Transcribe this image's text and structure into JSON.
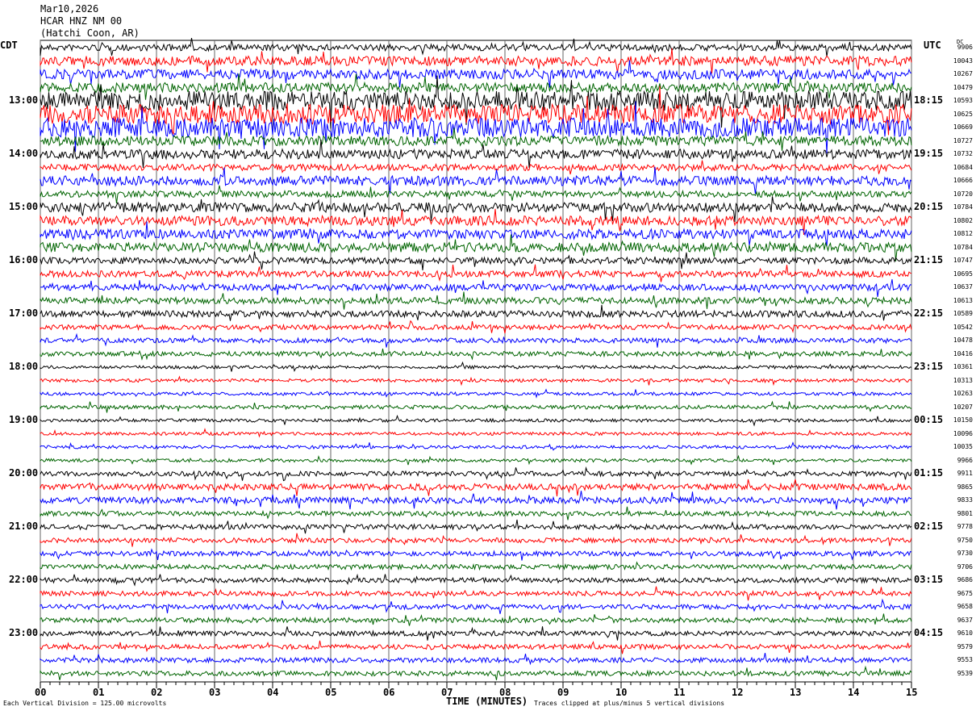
{
  "header": {
    "date": "Mar10,2026",
    "station": "HCAR HNZ NM 00",
    "location": "(Hatchi Coon, AR)"
  },
  "left_axis_title": "CDT",
  "right_axis_title": "UTC",
  "dc_title": "DC",
  "footer": {
    "scale": "Each Vertical Division =  125.00 microvolts",
    "xlabel": "TIME (MINUTES)",
    "clip": "Traces clipped at plus/minus 5 vertical divisions"
  },
  "chart_data": {
    "type": "line",
    "title": "HCAR HNZ NM 00",
    "xlabel": "TIME (MINUTES)",
    "xlim": [
      0,
      15
    ],
    "x_ticks": [
      "00",
      "01",
      "02",
      "03",
      "04",
      "05",
      "06",
      "07",
      "08",
      "09",
      "10",
      "11",
      "12",
      "13",
      "14",
      "15"
    ],
    "trace_colors": [
      "#000000",
      "#ff0000",
      "#0000ff",
      "#006400"
    ],
    "left_labels": [
      "13:00",
      "14:00",
      "15:00",
      "16:00",
      "17:00",
      "18:00",
      "19:00",
      "20:00",
      "21:00",
      "22:00",
      "23:00"
    ],
    "right_labels": [
      "18:15",
      "19:15",
      "20:15",
      "21:15",
      "22:15",
      "23:15",
      "00:15",
      "01:15",
      "02:15",
      "03:15",
      "04:15"
    ],
    "dc_values": [
      "9906",
      "10043",
      "10267",
      "10479",
      "10593",
      "10625",
      "10669",
      "10727",
      "10732",
      "10684",
      "10666",
      "10720",
      "10784",
      "10802",
      "10812",
      "10784",
      "10747",
      "10695",
      "10637",
      "10613",
      "10589",
      "10542",
      "10478",
      "10416",
      "10361",
      "10313",
      "10263",
      "10207",
      "10150",
      "10096",
      "10035",
      "9966",
      "9911",
      "9865",
      "9833",
      "9801",
      "9778",
      "9750",
      "9730",
      "9706",
      "9686",
      "9675",
      "9658",
      "9637",
      "9610",
      "9579",
      "9553",
      "9539"
    ]
  }
}
